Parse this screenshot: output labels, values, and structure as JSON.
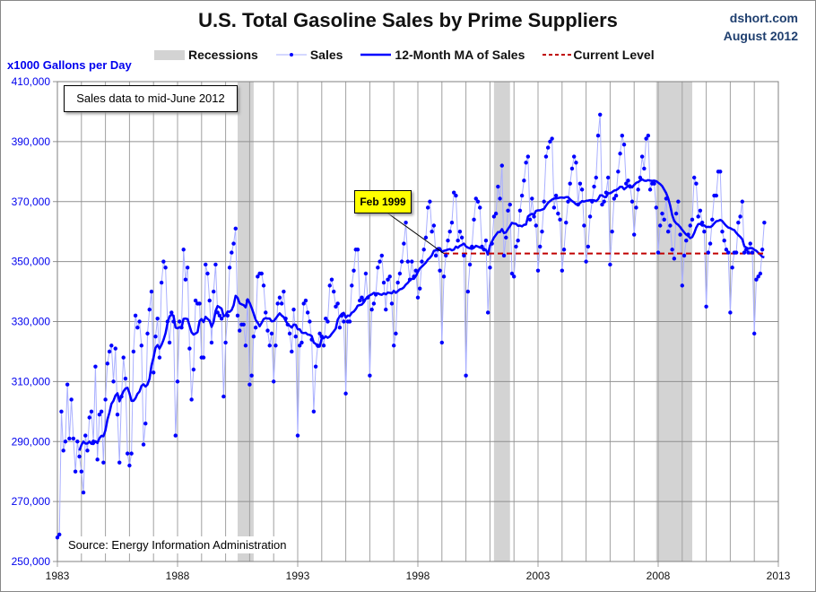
{
  "header": {
    "title": "U.S. Total Gasoline Sales by Prime Suppliers",
    "site": "dshort.com",
    "date": "August 2012"
  },
  "notes": {
    "data_note": "Sales data to mid-June 2012",
    "source": "Source: Energy Information Administration"
  },
  "colors": {
    "sales": "#0000ff",
    "sales_line": "#aab0ff",
    "ma": "#0000ff",
    "current": "#c00000",
    "recession": "#d3d3d3",
    "ylabels": "#0000ee"
  },
  "chart_data": {
    "type": "line",
    "title": "U.S. Total Gasoline Sales by Prime Suppliers",
    "ylabel": "x1000  Gallons per Day",
    "xlim": [
      1983,
      2013
    ],
    "ylim": [
      250000,
      410000
    ],
    "grid": true,
    "legend_position": "top",
    "xticks": [
      "1983",
      "1988",
      "1993",
      "1998",
      "2003",
      "2008",
      "2013"
    ],
    "yticks": [
      "250,000",
      "270,000",
      "290,000",
      "310,000",
      "330,000",
      "350,000",
      "370,000",
      "390,000",
      "410,000"
    ],
    "legend": {
      "recessions": "Recessions",
      "sales": "Sales",
      "ma": "12-Month MA of Sales",
      "current": "Current Level"
    },
    "recessions": [
      [
        "1990-07",
        "1991-03"
      ],
      [
        "2001-03",
        "2001-11"
      ],
      [
        "2007-12",
        "2009-06"
      ]
    ],
    "current_level": {
      "value": 352700,
      "from": "1999-02",
      "to": "2012-06"
    },
    "annotation": {
      "label": "Feb 1999",
      "date": "1999-02"
    },
    "sales_start": "1983-01",
    "sales_monthly": [
      [
        258000,
        259000,
        300000,
        287000,
        290000,
        309000,
        291000,
        304000,
        291000,
        280000,
        290000,
        285000
      ],
      [
        280000,
        273000,
        292000,
        287000,
        298000,
        300000,
        290000,
        315000,
        284000,
        299000,
        300000,
        283000
      ],
      [
        304000,
        316000,
        320000,
        322000,
        310000,
        321000,
        299000,
        283000,
        305000,
        318000,
        311000,
        286000
      ],
      [
        282000,
        286000,
        320000,
        332000,
        328000,
        330000,
        322000,
        289000,
        296000,
        326000,
        334000,
        340000
      ],
      [
        313000,
        325000,
        331000,
        318000,
        343000,
        350000,
        348000,
        330000,
        323000,
        333000,
        330000,
        292000
      ],
      [
        310000,
        330000,
        328000,
        354000,
        344000,
        348000,
        321000,
        304000,
        314000,
        337000,
        336000,
        336000
      ],
      [
        318000,
        318000,
        349000,
        346000,
        337000,
        323000,
        340000,
        349000,
        333000,
        332000,
        331000,
        305000
      ],
      [
        323000,
        332000,
        348000,
        353000,
        356000,
        361000,
        332000,
        327000,
        329000,
        329000,
        322000,
        337000
      ],
      [
        309000,
        312000,
        325000,
        328000,
        345000,
        346000,
        346000,
        342000,
        333000,
        327000,
        322000,
        326000
      ],
      [
        310000,
        322000,
        336000,
        338000,
        336000,
        340000,
        331000,
        329000,
        326000,
        320000,
        334000,
        325000
      ],
      [
        292000,
        322000,
        323000,
        336000,
        337000,
        333000,
        330000,
        324000,
        300000,
        315000,
        322000,
        326000
      ],
      [
        325000,
        322000,
        331000,
        330000,
        342000,
        344000,
        340000,
        335000,
        336000,
        328000,
        332000,
        330000
      ],
      [
        306000,
        330000,
        330000,
        342000,
        347000,
        354000,
        354000,
        337000,
        338000,
        337000,
        346000,
        338000
      ],
      [
        312000,
        334000,
        336000,
        339000,
        348000,
        350000,
        352000,
        343000,
        334000,
        344000,
        345000,
        336000
      ],
      [
        322000,
        326000,
        343000,
        346000,
        350000,
        356000,
        363000,
        350000,
        344000,
        350000,
        345000,
        347000
      ],
      [
        338000,
        341000,
        350000,
        354000,
        358000,
        368000,
        370000,
        360000,
        362000,
        352000,
        354000,
        347000
      ],
      [
        323000,
        345000,
        352000,
        357000,
        360000,
        363000,
        373000,
        372000,
        357000,
        360000,
        358000,
        352000
      ],
      [
        312000,
        340000,
        349000,
        355000,
        364000,
        371000,
        370000,
        368000,
        355000,
        354000,
        357000,
        333000
      ],
      [
        348000,
        356000,
        365000,
        366000,
        375000,
        371000,
        382000,
        352000,
        358000,
        367000,
        369000,
        346000
      ],
      [
        345000,
        355000,
        357000,
        367000,
        372000,
        377000,
        383000,
        385000,
        364000,
        371000,
        365000,
        362000
      ],
      [
        347000,
        355000,
        360000,
        370000,
        385000,
        388000,
        390000,
        391000,
        368000,
        372000,
        366000,
        364000
      ],
      [
        347000,
        354000,
        363000,
        370000,
        376000,
        381000,
        385000,
        383000,
        369000,
        376000,
        374000,
        362000
      ],
      [
        350000,
        355000,
        365000,
        370000,
        375000,
        378000,
        392000,
        399000,
        369000,
        370000,
        373000,
        378000
      ],
      [
        349000,
        360000,
        371000,
        372000,
        380000,
        386000,
        392000,
        389000,
        376000,
        377000,
        375000,
        370000
      ],
      [
        359000,
        368000,
        374000,
        378000,
        385000,
        381000,
        391000,
        392000,
        374000,
        376000,
        376000,
        368000
      ],
      [
        353000,
        362000,
        366000,
        364000,
        371000,
        360000,
        362000,
        354000,
        351000,
        366000,
        370000,
        359000
      ],
      [
        342000,
        352000,
        357000,
        359000,
        362000,
        364000,
        378000,
        376000,
        365000,
        367000,
        363000,
        360000
      ],
      [
        335000,
        353000,
        356000,
        364000,
        372000,
        372000,
        380000,
        380000,
        360000,
        357000,
        354000,
        353000
      ],
      [
        333000,
        348000,
        353000,
        353000,
        363000,
        365000,
        370000,
        353000,
        354000,
        353000,
        356000,
        353000
      ],
      [
        326000,
        344000,
        345000,
        346000,
        354000,
        363000
      ]
    ]
  }
}
